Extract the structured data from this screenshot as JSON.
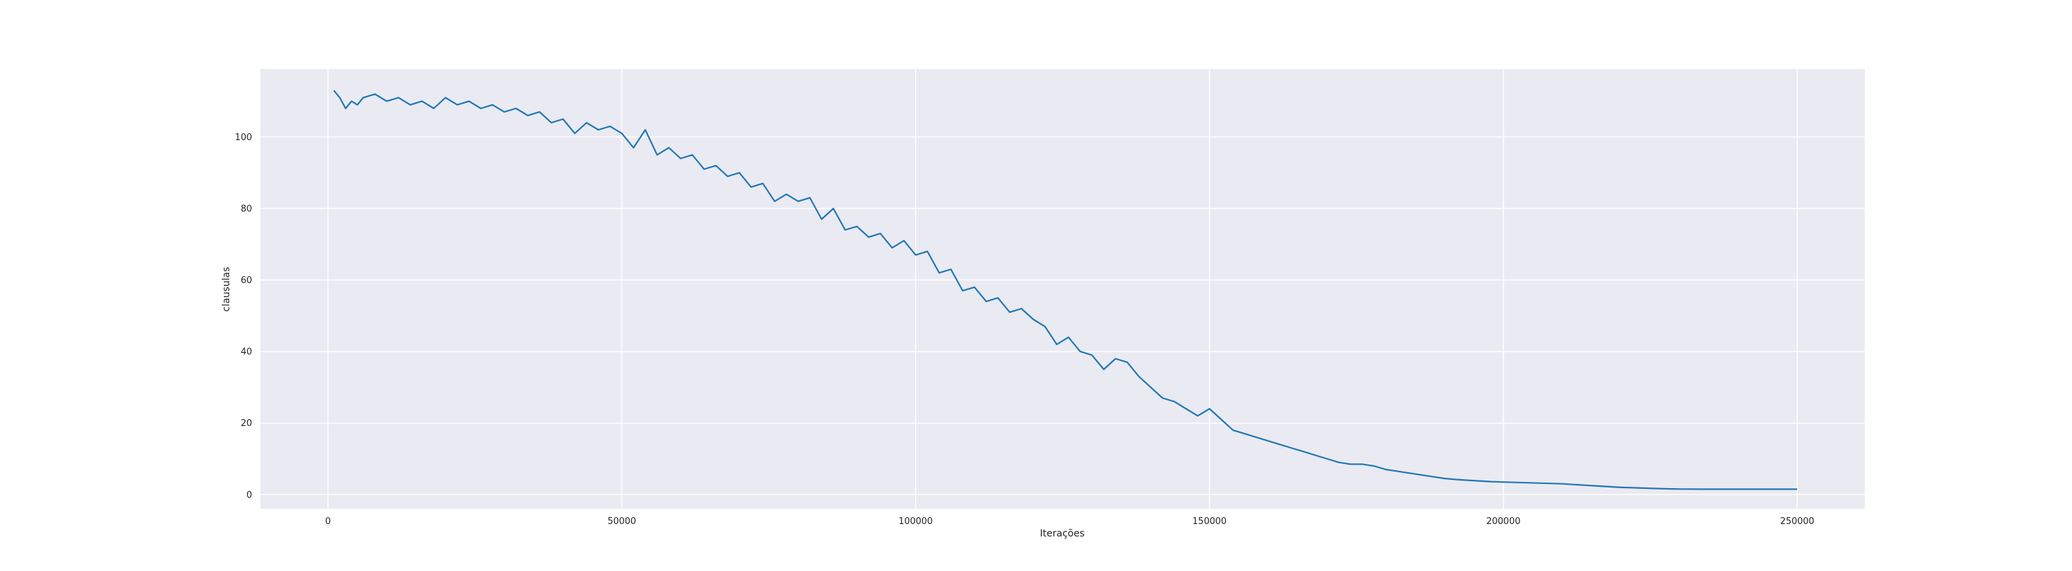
{
  "chart_data": {
    "type": "line",
    "title": "",
    "xlabel": "Iterações",
    "ylabel": "clausulas",
    "xlim": [
      -11500,
      261500
    ],
    "ylim": [
      -4,
      119
    ],
    "xticks": [
      0,
      50000,
      100000,
      150000,
      200000,
      250000
    ],
    "xtick_labels": [
      "0",
      "50000",
      "100000",
      "150000",
      "200000",
      "250000"
    ],
    "yticks": [
      0,
      20,
      40,
      60,
      80,
      100
    ],
    "ytick_labels": [
      "0",
      "20",
      "40",
      "60",
      "80",
      "100"
    ],
    "grid": true,
    "background": "#eaeaf2",
    "grid_color": "#ffffff",
    "series": [
      {
        "color": "#1f77b4",
        "points": [
          [
            1000,
            113
          ],
          [
            2000,
            111
          ],
          [
            3000,
            108
          ],
          [
            4000,
            110
          ],
          [
            5000,
            109
          ],
          [
            6000,
            111
          ],
          [
            8000,
            112
          ],
          [
            10000,
            110
          ],
          [
            12000,
            111
          ],
          [
            14000,
            109
          ],
          [
            16000,
            110
          ],
          [
            18000,
            108
          ],
          [
            20000,
            111
          ],
          [
            22000,
            109
          ],
          [
            24000,
            110
          ],
          [
            26000,
            108
          ],
          [
            28000,
            109
          ],
          [
            30000,
            107
          ],
          [
            32000,
            108
          ],
          [
            34000,
            106
          ],
          [
            36000,
            107
          ],
          [
            38000,
            104
          ],
          [
            40000,
            105
          ],
          [
            42000,
            101
          ],
          [
            44000,
            104
          ],
          [
            46000,
            102
          ],
          [
            48000,
            103
          ],
          [
            50000,
            101
          ],
          [
            52000,
            97
          ],
          [
            54000,
            102
          ],
          [
            56000,
            95
          ],
          [
            58000,
            97
          ],
          [
            60000,
            94
          ],
          [
            62000,
            95
          ],
          [
            64000,
            91
          ],
          [
            66000,
            92
          ],
          [
            68000,
            89
          ],
          [
            70000,
            90
          ],
          [
            72000,
            86
          ],
          [
            74000,
            87
          ],
          [
            76000,
            82
          ],
          [
            78000,
            84
          ],
          [
            80000,
            82
          ],
          [
            82000,
            83
          ],
          [
            84000,
            77
          ],
          [
            86000,
            80
          ],
          [
            88000,
            74
          ],
          [
            90000,
            75
          ],
          [
            92000,
            72
          ],
          [
            94000,
            73
          ],
          [
            96000,
            69
          ],
          [
            98000,
            71
          ],
          [
            100000,
            67
          ],
          [
            102000,
            68
          ],
          [
            104000,
            62
          ],
          [
            106000,
            63
          ],
          [
            108000,
            57
          ],
          [
            110000,
            58
          ],
          [
            112000,
            54
          ],
          [
            114000,
            55
          ],
          [
            116000,
            51
          ],
          [
            118000,
            52
          ],
          [
            120000,
            49
          ],
          [
            122000,
            47
          ],
          [
            124000,
            42
          ],
          [
            126000,
            44
          ],
          [
            128000,
            40
          ],
          [
            130000,
            39
          ],
          [
            132000,
            35
          ],
          [
            134000,
            38
          ],
          [
            136000,
            37
          ],
          [
            138000,
            33
          ],
          [
            140000,
            30
          ],
          [
            142000,
            27
          ],
          [
            144000,
            26
          ],
          [
            146000,
            24
          ],
          [
            148000,
            22
          ],
          [
            150000,
            24
          ],
          [
            152000,
            21
          ],
          [
            154000,
            18
          ],
          [
            156000,
            17
          ],
          [
            158000,
            16
          ],
          [
            160000,
            15
          ],
          [
            162000,
            14
          ],
          [
            164000,
            13
          ],
          [
            166000,
            12
          ],
          [
            168000,
            11
          ],
          [
            170000,
            10
          ],
          [
            172000,
            9
          ],
          [
            174000,
            8.5
          ],
          [
            176000,
            8.5
          ],
          [
            178000,
            8
          ],
          [
            180000,
            7
          ],
          [
            182000,
            6.5
          ],
          [
            184000,
            6
          ],
          [
            186000,
            5.5
          ],
          [
            188000,
            5
          ],
          [
            190000,
            4.5
          ],
          [
            192000,
            4.2
          ],
          [
            194000,
            4
          ],
          [
            196000,
            3.8
          ],
          [
            198000,
            3.6
          ],
          [
            200000,
            3.5
          ],
          [
            202000,
            3.4
          ],
          [
            204000,
            3.3
          ],
          [
            206000,
            3.2
          ],
          [
            208000,
            3.1
          ],
          [
            210000,
            3
          ],
          [
            212000,
            2.8
          ],
          [
            214000,
            2.6
          ],
          [
            216000,
            2.4
          ],
          [
            218000,
            2.2
          ],
          [
            220000,
            2
          ],
          [
            222000,
            1.9
          ],
          [
            224000,
            1.8
          ],
          [
            226000,
            1.7
          ],
          [
            228000,
            1.6
          ],
          [
            230000,
            1.55
          ],
          [
            234000,
            1.5
          ],
          [
            238000,
            1.5
          ],
          [
            242000,
            1.5
          ],
          [
            246000,
            1.5
          ],
          [
            250000,
            1.5
          ]
        ]
      }
    ]
  }
}
